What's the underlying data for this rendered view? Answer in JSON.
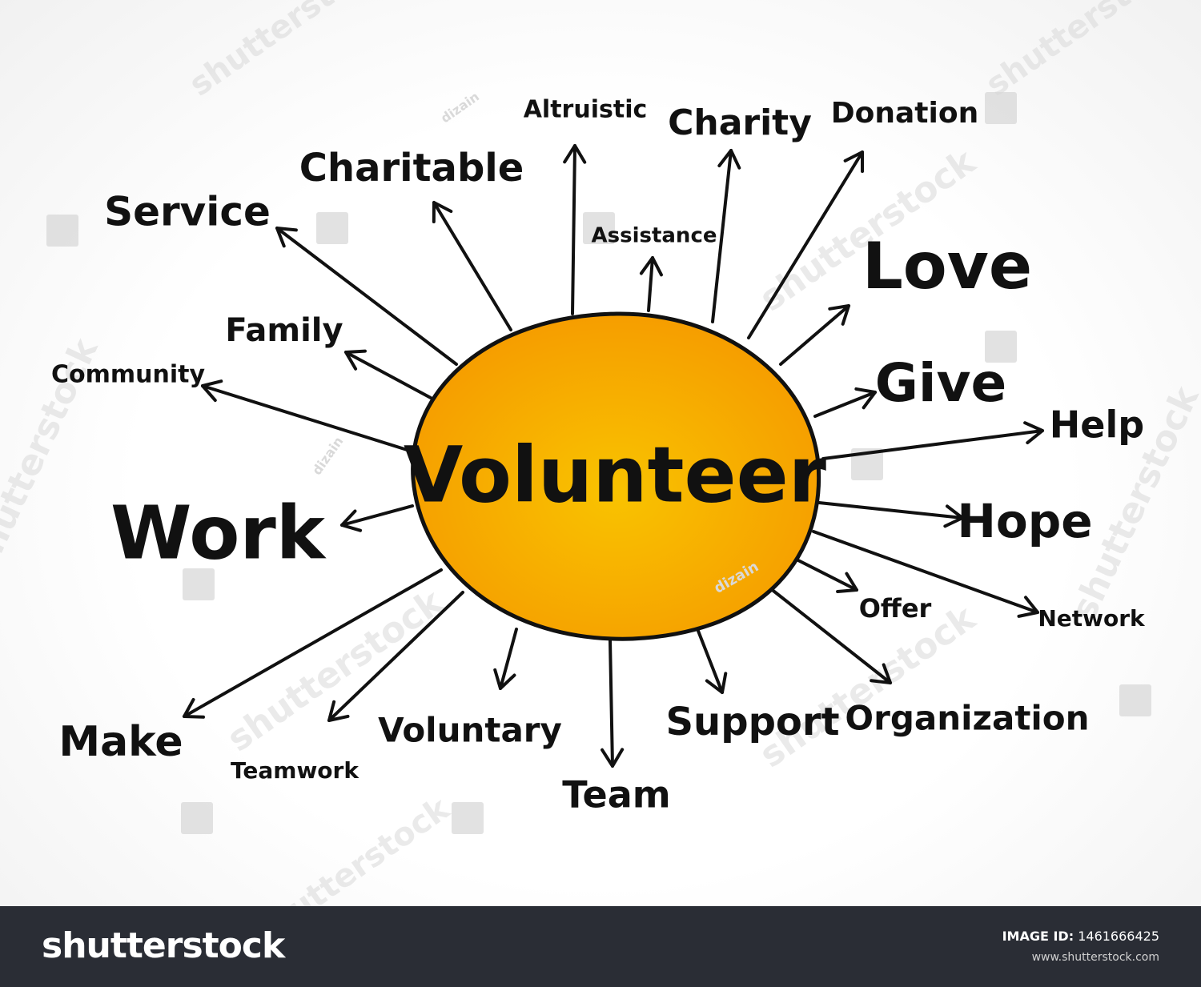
{
  "diagram": {
    "center": {
      "label": "Volunteer",
      "fill": "#f9c300",
      "edge": "#f59a00"
    },
    "branches": [
      {
        "label": "Altruistic"
      },
      {
        "label": "Charity"
      },
      {
        "label": "Donation"
      },
      {
        "label": "Charitable"
      },
      {
        "label": "Service"
      },
      {
        "label": "Assistance"
      },
      {
        "label": "Love"
      },
      {
        "label": "Family"
      },
      {
        "label": "Community"
      },
      {
        "label": "Give"
      },
      {
        "label": "Help"
      },
      {
        "label": "Work"
      },
      {
        "label": "Hope"
      },
      {
        "label": "Offer"
      },
      {
        "label": "Network"
      },
      {
        "label": "Make"
      },
      {
        "label": "Teamwork"
      },
      {
        "label": "Voluntary"
      },
      {
        "label": "Team"
      },
      {
        "label": "Support"
      },
      {
        "label": "Organization"
      }
    ]
  },
  "watermark": {
    "brand": "shutterstock",
    "author": "dizain"
  },
  "footer": {
    "logo": "shutterstock",
    "image_id_label": "IMAGE ID:",
    "image_id": "1461666425",
    "url": "www.shutterstock.com"
  }
}
